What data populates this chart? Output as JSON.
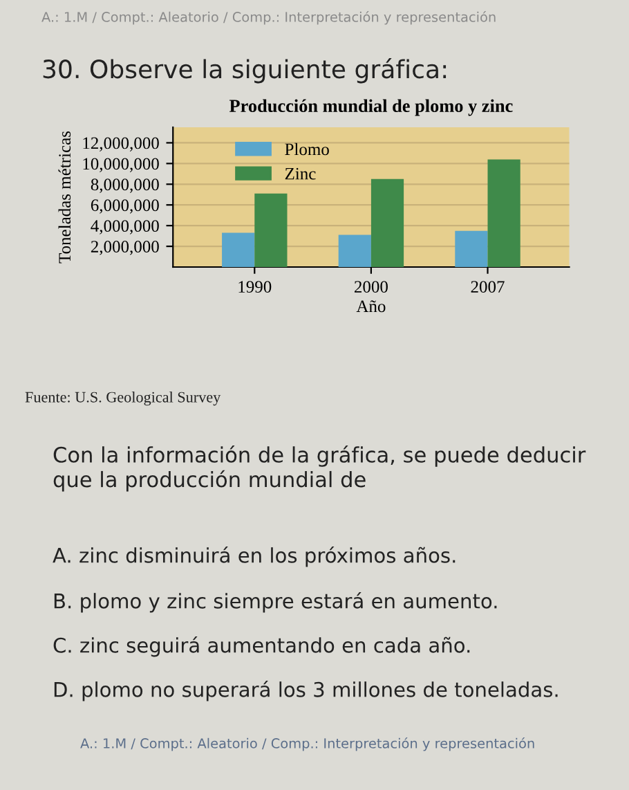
{
  "chart_data": {
    "type": "bar",
    "title": "Producción mundial de plomo y zinc",
    "xlabel": "Año",
    "ylabel": "Toneladas métricas",
    "categories": [
      "1990",
      "2000",
      "2007"
    ],
    "series": [
      {
        "name": "Plomo",
        "color": "#5aa6cc",
        "values": [
          3300000,
          3100000,
          3500000
        ]
      },
      {
        "name": "Zinc",
        "color": "#3f8a4a",
        "values": [
          7100000,
          8500000,
          10400000
        ]
      }
    ],
    "ylim": [
      0,
      13500000
    ],
    "yticks": [
      {
        "value": 2000000,
        "label": "2,000,000"
      },
      {
        "value": 4000000,
        "label": "4,000,000"
      },
      {
        "value": 6000000,
        "label": "6,000,000"
      },
      {
        "value": 8000000,
        "label": "8,000,000"
      },
      {
        "value": 10000000,
        "label": "10,000,000"
      },
      {
        "value": 12000000,
        "label": "12,000,000"
      }
    ],
    "grid": "y",
    "legend": "top left",
    "annotations": [
      "A.: 1.M / Compt.: Aleatorio / Comp.: Interpretación y representación",
      "30. Observe la siguiente gráfica:",
      "Fuente: U.S. Geological Survey",
      "Con la información de la gráfica, se puede deducir que la producción mundial de",
      "A. zinc disminuirá en los próximos años.",
      "B. plomo y zinc siempre estará en aumento.",
      "C. zinc seguirá aumentando en cada año.",
      "D. plomo no superará los 3 millones de toneladas.",
      "A.: 1.M / Compt.: Aleatorio / Comp.: Interpretación y representación"
    ]
  }
}
